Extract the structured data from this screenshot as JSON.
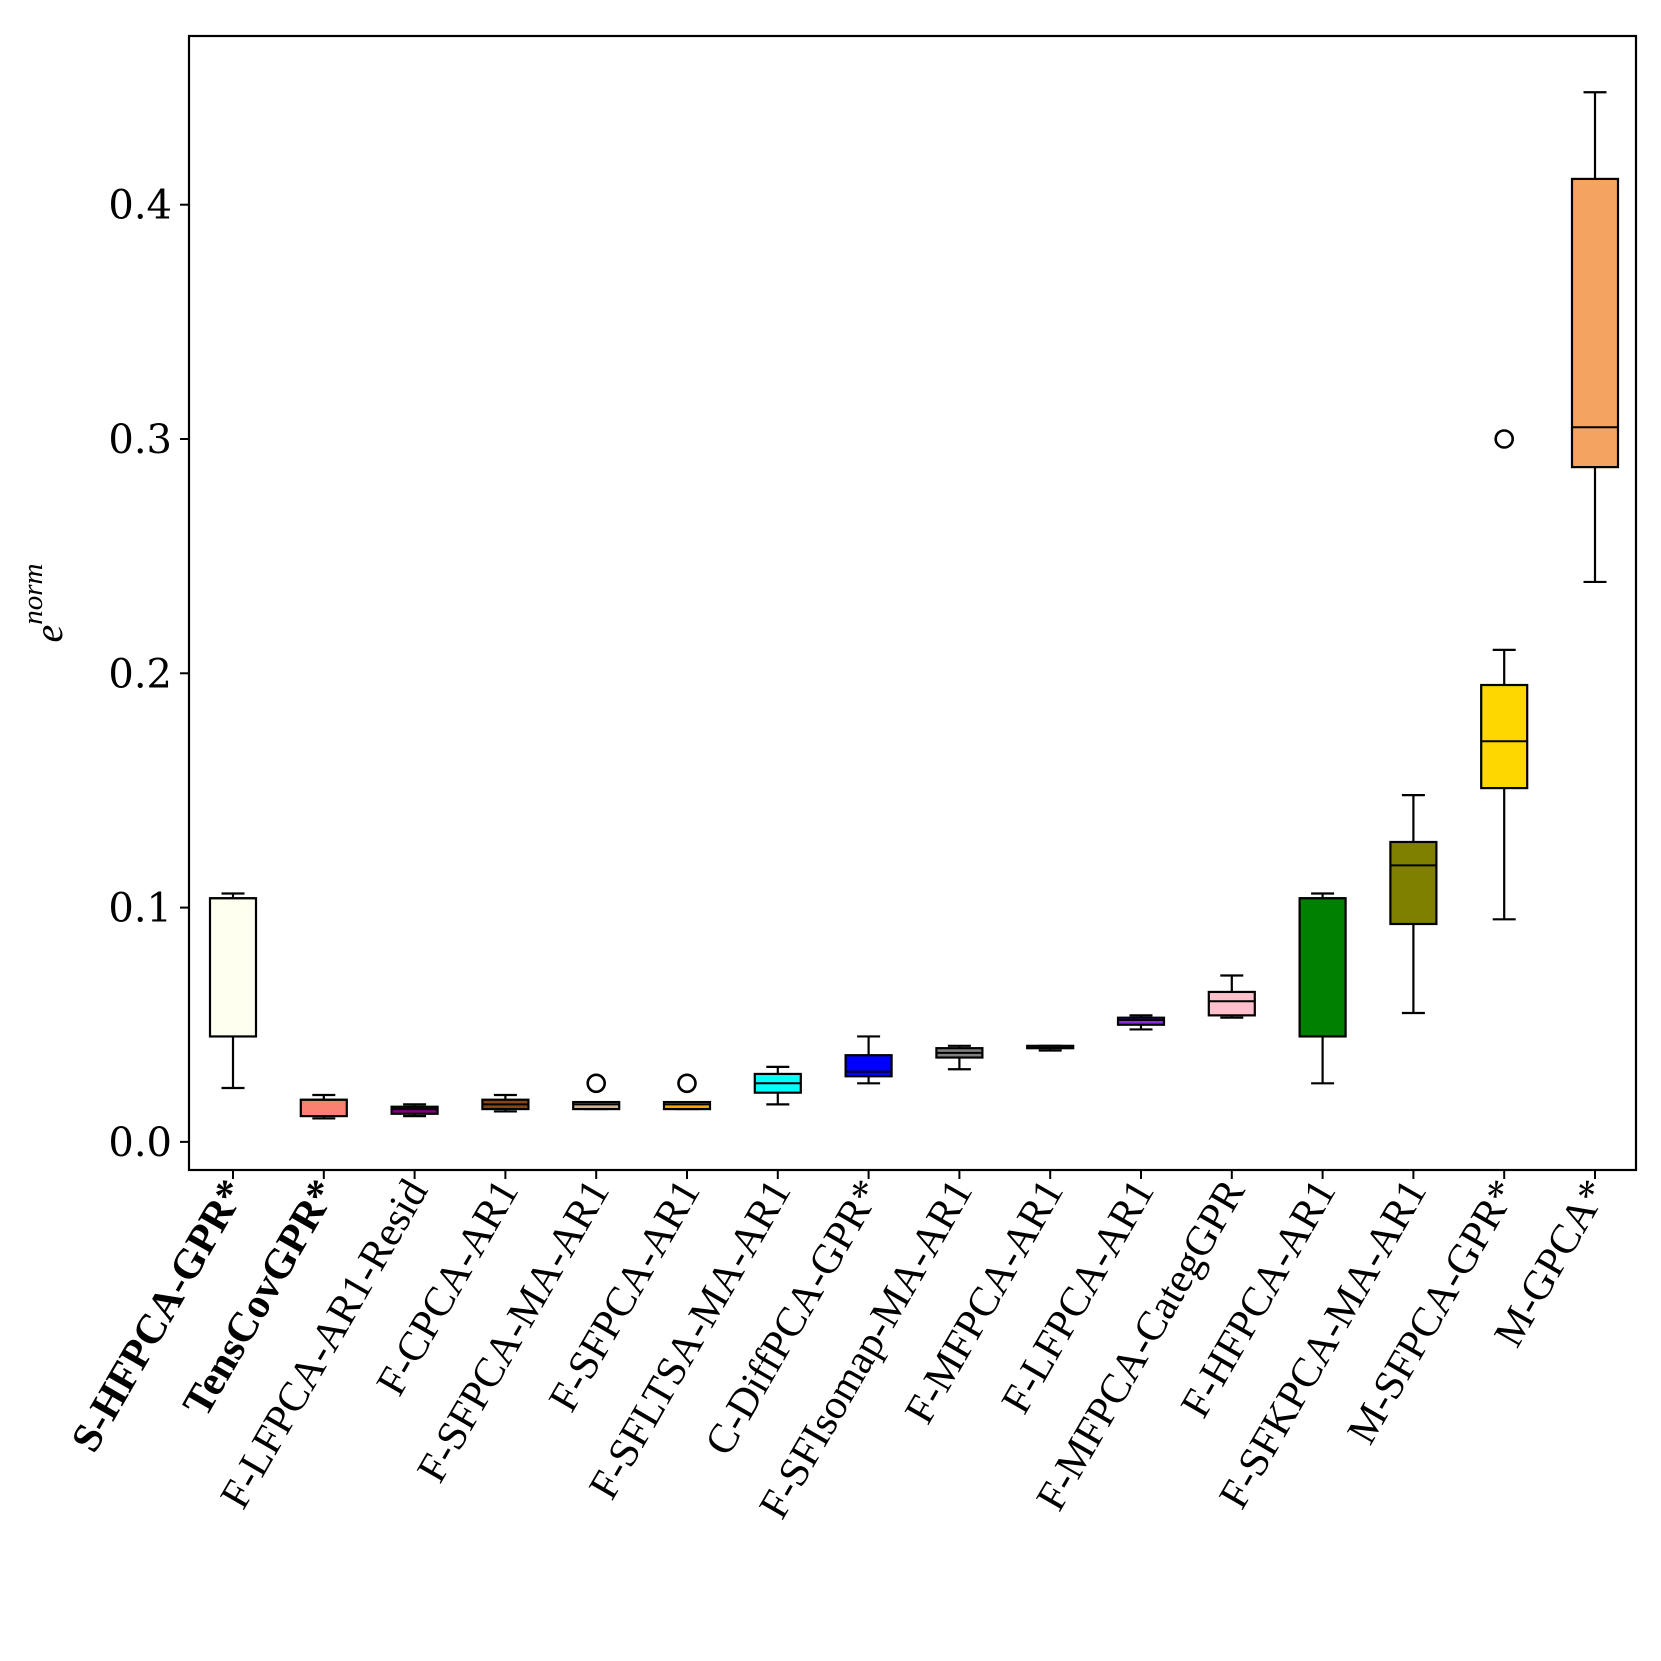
{
  "chart_data": {
    "type": "boxplot",
    "title": "",
    "xlabel": "",
    "ylabel": "e",
    "ylabel_superscript": "norm",
    "ylim": [
      -0.012,
      0.472
    ],
    "yticks": [
      0.0,
      0.1,
      0.2,
      0.3,
      0.4
    ],
    "ytick_labels": [
      "0.0",
      "0.1",
      "0.2",
      "0.3",
      "0.4"
    ],
    "categories": [
      {
        "label": "S-HFPCA-GPR*",
        "bold": true,
        "color": "#fffff0",
        "whisker_low": 0.023,
        "q1": 0.045,
        "median": 0.104,
        "q3": 0.104,
        "whisker_high": 0.106,
        "outliers": []
      },
      {
        "label": "TensCovGPR*",
        "bold": true,
        "color": "#fa8072",
        "whisker_low": 0.01,
        "q1": 0.011,
        "median": 0.018,
        "q3": 0.018,
        "whisker_high": 0.02,
        "outliers": []
      },
      {
        "label": "F-LFPCA-AR1-Resid",
        "bold": false,
        "color": "#800080",
        "whisker_low": 0.011,
        "q1": 0.012,
        "median": 0.014,
        "q3": 0.015,
        "whisker_high": 0.016,
        "outliers": []
      },
      {
        "label": "F-CPCA-AR1",
        "bold": false,
        "color": "#8b4513",
        "whisker_low": 0.013,
        "q1": 0.014,
        "median": 0.016,
        "q3": 0.018,
        "whisker_high": 0.02,
        "outliers": []
      },
      {
        "label": "F-SFPCA-MA-AR1",
        "bold": false,
        "color": "#d2b48c",
        "whisker_low": 0.014,
        "q1": 0.014,
        "median": 0.016,
        "q3": 0.017,
        "whisker_high": 0.017,
        "outliers": [
          0.025
        ]
      },
      {
        "label": "F-SFPCA-AR1",
        "bold": false,
        "color": "#ffa500",
        "whisker_low": 0.014,
        "q1": 0.014,
        "median": 0.016,
        "q3": 0.017,
        "whisker_high": 0.017,
        "outliers": [
          0.025
        ]
      },
      {
        "label": "F-SFLTSA-MA-AR1",
        "bold": false,
        "color": "#00ffff",
        "whisker_low": 0.016,
        "q1": 0.021,
        "median": 0.025,
        "q3": 0.029,
        "whisker_high": 0.032,
        "outliers": []
      },
      {
        "label": "C-DiffPCA-GPR*",
        "bold": false,
        "color": "#0000ff",
        "whisker_low": 0.025,
        "q1": 0.028,
        "median": 0.03,
        "q3": 0.037,
        "whisker_high": 0.045,
        "outliers": []
      },
      {
        "label": "F-SFIsomap-MA-AR1",
        "bold": false,
        "color": "#808080",
        "whisker_low": 0.031,
        "q1": 0.036,
        "median": 0.038,
        "q3": 0.04,
        "whisker_high": 0.041,
        "outliers": []
      },
      {
        "label": "F-MFPCA-AR1",
        "bold": false,
        "color": "#2e8b57",
        "whisker_low": 0.039,
        "q1": 0.04,
        "median": 0.04,
        "q3": 0.041,
        "whisker_high": 0.041,
        "outliers": []
      },
      {
        "label": "F-LFPCA-AR1",
        "bold": false,
        "color": "#8a2be2",
        "whisker_low": 0.048,
        "q1": 0.05,
        "median": 0.052,
        "q3": 0.053,
        "whisker_high": 0.054,
        "outliers": []
      },
      {
        "label": "F-MFPCA-CategGPR",
        "bold": false,
        "color": "#ffc0cb",
        "whisker_low": 0.053,
        "q1": 0.054,
        "median": 0.06,
        "q3": 0.064,
        "whisker_high": 0.071,
        "outliers": []
      },
      {
        "label": "F-HFPCA-AR1",
        "bold": false,
        "color": "#008000",
        "whisker_low": 0.025,
        "q1": 0.045,
        "median": 0.104,
        "q3": 0.104,
        "whisker_high": 0.106,
        "outliers": []
      },
      {
        "label": "F-SFKPCA-MA-AR1",
        "bold": false,
        "color": "#808000",
        "whisker_low": 0.055,
        "q1": 0.093,
        "median": 0.118,
        "q3": 0.128,
        "whisker_high": 0.148,
        "outliers": []
      },
      {
        "label": "M-SFPCA-GPR*",
        "bold": false,
        "color": "#ffd700",
        "whisker_low": 0.095,
        "q1": 0.151,
        "median": 0.171,
        "q3": 0.195,
        "whisker_high": 0.21,
        "outliers": [
          0.3
        ]
      },
      {
        "label": "M-GPCA*",
        "bold": false,
        "color": "#f4a460",
        "whisker_low": 0.239,
        "q1": 0.288,
        "median": 0.305,
        "q3": 0.411,
        "whisker_high": 0.448,
        "outliers": []
      }
    ]
  }
}
